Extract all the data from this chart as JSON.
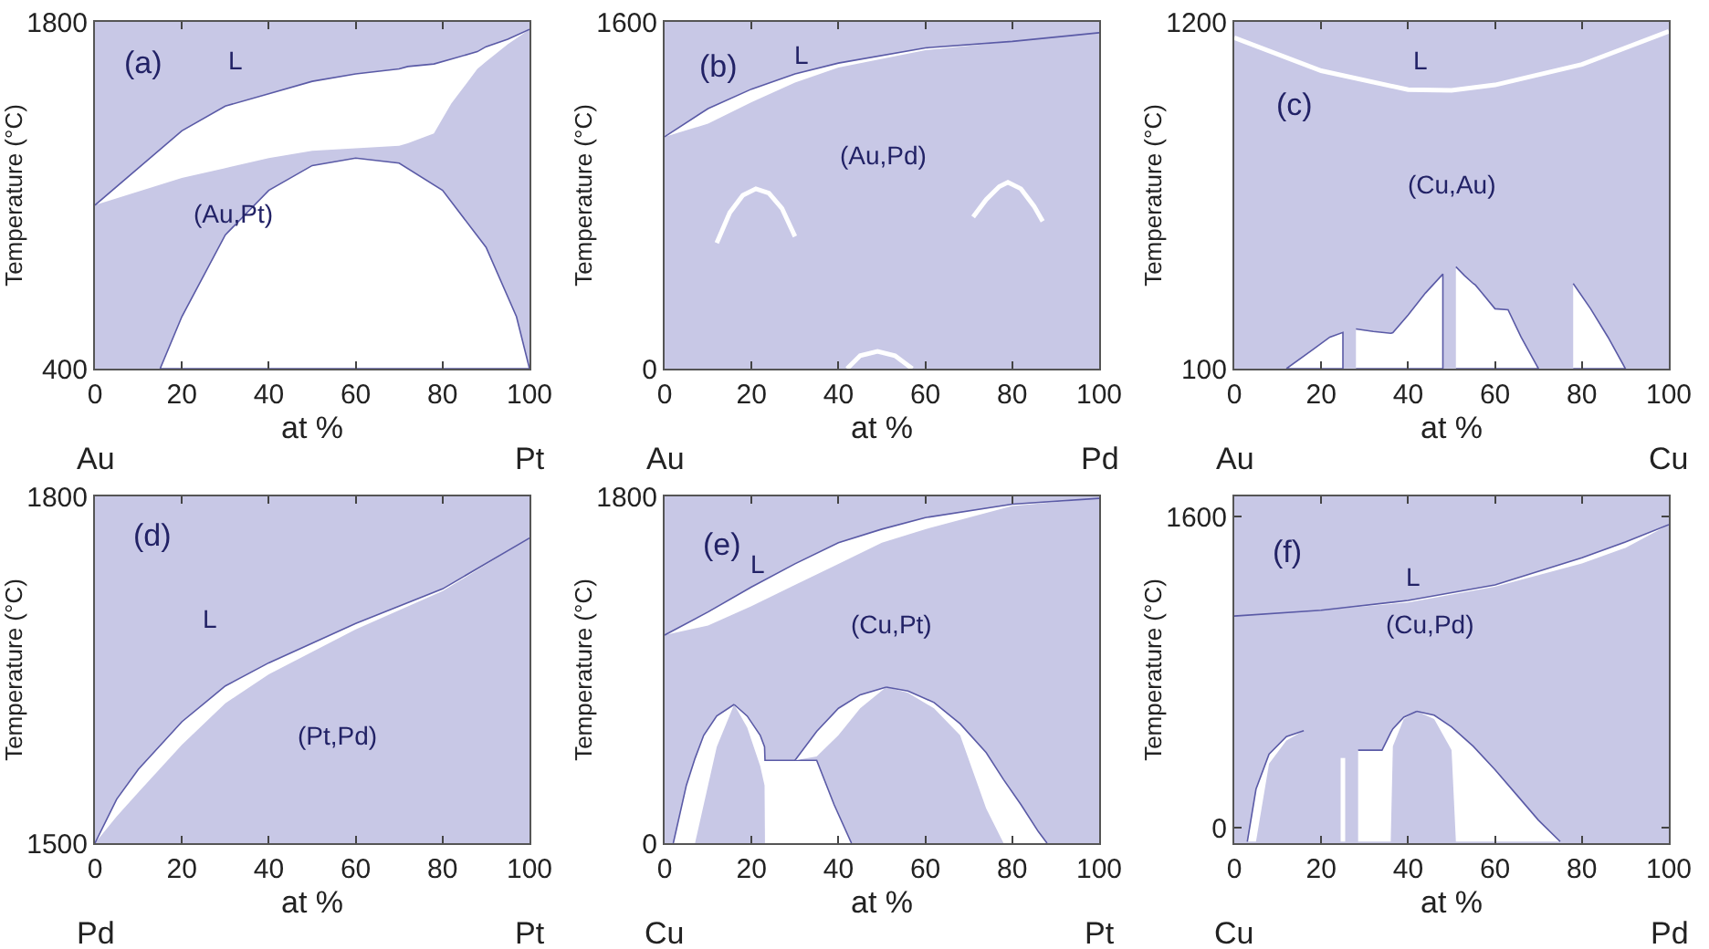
{
  "chart_data": [
    {
      "type": "area",
      "xlabel": "at %",
      "ylabel": "Temperature (°C)",
      "xlim": [
        0,
        100
      ],
      "xticks": [
        0,
        20,
        40,
        60,
        80,
        100
      ],
      "ylim": [
        400,
        1800
      ],
      "yticks": [
        400,
        1800
      ],
      "bands": [
        {
          "axis": "y",
          "from": 400,
          "to": 1800,
          "color": "#c8c8e6"
        }
      ],
      "series": [
        {
          "type": "line",
          "color": "#5a5aa6",
          "x": [
            0,
            20,
            30,
            40,
            50,
            60,
            70,
            72,
            78,
            82,
            88,
            90,
            95,
            100
          ],
          "values": [
            1060,
            1360,
            1460,
            1510,
            1560,
            1590,
            1610,
            1620,
            1630,
            1650,
            1680,
            1700,
            1730,
            1770
          ],
          "upper": [
            1060,
            1360,
            1460,
            1510,
            1560,
            1590,
            1610,
            1620,
            1630,
            1650,
            1680,
            1700,
            1730,
            1770
          ],
          "lower": [
            1060,
            1170,
            1210,
            1250,
            1280,
            1290,
            1300,
            1310,
            1350,
            1470,
            1610,
            1640,
            1710,
            1770
          ]
        },
        {
          "color": "#ffffff",
          "x": [
            15,
            20,
            30,
            40,
            50,
            60,
            70,
            80,
            90,
            97,
            100
          ],
          "values": [
            400,
            610,
            940,
            1120,
            1220,
            1250,
            1230,
            1120,
            890,
            610,
            400
          ]
        }
      ],
      "annotations": [
        "(a)",
        "L",
        "(Au,Pt)",
        "Au",
        "Pt"
      ]
    },
    {
      "type": "line",
      "xlabel": "at %",
      "ylabel": "Temperature (°C)",
      "xlim": [
        0,
        100
      ],
      "xticks": [
        0,
        20,
        40,
        60,
        80,
        100
      ],
      "ylim": [
        0,
        1600
      ],
      "yticks": [
        0,
        1600
      ],
      "bands": [
        {
          "axis": "y",
          "from": 0,
          "to": 1600,
          "color": "#c8c8e6"
        }
      ],
      "series": [
        {
          "type": "line",
          "color": "#5a5aa6",
          "x": [
            0,
            10,
            20,
            30,
            40,
            60,
            80,
            100
          ],
          "values": [
            1070,
            1200,
            1290,
            1360,
            1410,
            1480,
            1510,
            1550
          ],
          "upper": [
            1070,
            1200,
            1290,
            1360,
            1410,
            1480,
            1510,
            1550
          ],
          "lower": [
            1070,
            1130,
            1230,
            1320,
            1390,
            1470,
            1510,
            1550
          ]
        },
        {
          "color": "#ffffff",
          "x": [
            12,
            15,
            18,
            21,
            24,
            27,
            30
          ],
          "values": [
            580,
            720,
            800,
            830,
            810,
            740,
            610
          ]
        },
        {
          "color": "#ffffff",
          "x": [
            71,
            74,
            77,
            79,
            82,
            85,
            87
          ],
          "values": [
            700,
            780,
            840,
            860,
            830,
            750,
            680
          ]
        },
        {
          "color": "#ffffff",
          "x": [
            42,
            45,
            49,
            53,
            57
          ],
          "values": [
            0,
            60,
            80,
            60,
            0
          ]
        }
      ],
      "annotations": [
        "(b)",
        "L",
        "(Au,Pd)",
        "Au",
        "Pd"
      ]
    },
    {
      "type": "area",
      "xlabel": "at %",
      "ylabel": "Temperature (°C)",
      "xlim": [
        0,
        100
      ],
      "xticks": [
        0,
        20,
        40,
        60,
        80,
        100
      ],
      "ylim": [
        100,
        1200
      ],
      "yticks": [
        100,
        1200
      ],
      "bands": [
        {
          "axis": "y",
          "from": 100,
          "to": 1200,
          "color": "#c8c8e6"
        }
      ],
      "series": [
        {
          "type": "line",
          "color": "#ffffff",
          "x": [
            0,
            20,
            40,
            50,
            60,
            80,
            100
          ],
          "values": [
            1150,
            1045,
            985,
            983,
            1000,
            1065,
            1170
          ]
        },
        {
          "color": "#ffffff",
          "x": [
            12,
            18,
            22,
            25
          ],
          "values": [
            100,
            160,
            200,
            215
          ]
        },
        {
          "color": "#ffffff",
          "x": [
            28,
            32,
            36,
            36.5,
            40,
            44,
            48
          ],
          "values": [
            226,
            218,
            212,
            214,
            270,
            340,
            400
          ]
        },
        {
          "color": "#ffffff",
          "x": [
            51,
            53,
            55,
            55.5,
            57,
            60,
            63,
            66,
            70
          ],
          "values": [
            423,
            395,
            370,
            365,
            340,
            290,
            287,
            200,
            100
          ]
        },
        {
          "color": "#ffffff",
          "x": [
            78,
            82,
            86,
            90
          ],
          "values": [
            370,
            290,
            200,
            100
          ]
        }
      ],
      "annotations": [
        "(c)",
        "L",
        "(Cu,Au)",
        "Au",
        "Cu"
      ]
    },
    {
      "type": "line",
      "xlabel": "at %",
      "ylabel": "Temperature (°C)",
      "xlim": [
        0,
        100
      ],
      "xticks": [
        0,
        20,
        40,
        60,
        80,
        100
      ],
      "ylim": [
        1500,
        1800
      ],
      "yticks": [
        1500,
        1800
      ],
      "bands": [
        {
          "axis": "y",
          "from": 1500,
          "to": 1800,
          "color": "#c8c8e6"
        }
      ],
      "series": [
        {
          "color": "#5a5aa6",
          "x": [
            0,
            5,
            10,
            20,
            30,
            40,
            60,
            80,
            100
          ],
          "values": [
            1500,
            1538,
            1564,
            1605,
            1636,
            1656,
            1690,
            1720,
            1764
          ],
          "upper": [
            1500,
            1538,
            1564,
            1605,
            1636,
            1656,
            1690,
            1720,
            1764
          ],
          "lower": [
            1500,
            1523,
            1544,
            1585,
            1621,
            1646,
            1685,
            1718,
            1764
          ]
        }
      ],
      "annotations": [
        "(d)",
        "L",
        "(Pt,Pd)",
        "Pd",
        "Pt"
      ]
    },
    {
      "type": "line",
      "xlabel": "at %",
      "ylabel": "Temperature (°C)",
      "xlim": [
        0,
        100
      ],
      "xticks": [
        0,
        20,
        40,
        60,
        80,
        100
      ],
      "ylim": [
        0,
        1800
      ],
      "yticks": [
        0,
        1800
      ],
      "bands": [
        {
          "axis": "y",
          "from": 0,
          "to": 1800,
          "color": "#c8c8e6"
        }
      ],
      "series": [
        {
          "color": "#5a5aa6",
          "x": [
            0,
            10,
            20,
            30,
            40,
            50,
            60,
            80,
            100
          ],
          "values": [
            1080,
            1200,
            1330,
            1450,
            1560,
            1630,
            1690,
            1760,
            1790
          ],
          "upper": [
            1080,
            1200,
            1330,
            1450,
            1560,
            1630,
            1690,
            1760,
            1790
          ],
          "lower": [
            1080,
            1130,
            1230,
            1340,
            1450,
            1560,
            1630,
            1750,
            1790
          ]
        },
        {
          "color": "#5a5aa6",
          "x": [
            2,
            5,
            7,
            9,
            12,
            16
          ],
          "values": [
            0,
            300,
            440,
            560,
            660,
            720
          ],
          "upper": [
            0,
            300,
            440,
            560,
            660,
            720
          ],
          "lower": [
            0,
            0,
            0,
            200,
            500,
            720
          ]
        },
        {
          "color": "#5a5aa6",
          "x": [
            16,
            19,
            22,
            23,
            23.1,
            29,
            35,
            39,
            43
          ],
          "values": [
            720,
            660,
            560,
            500,
            430,
            430,
            430,
            200,
            0
          ],
          "upper": [
            720,
            660,
            560,
            500,
            430,
            430,
            430,
            200,
            0
          ],
          "lower": [
            720,
            600,
            400,
            300,
            0,
            0,
            0,
            0,
            0
          ]
        },
        {
          "color": "#5a5aa6",
          "x": [
            30,
            35,
            40,
            45,
            51
          ],
          "values": [
            430,
            580,
            700,
            770,
            810
          ],
          "upper": [
            430,
            580,
            700,
            770,
            810
          ],
          "lower": [
            430,
            450,
            560,
            700,
            810
          ]
        },
        {
          "color": "#5a5aa6",
          "x": [
            51,
            56,
            62,
            68,
            74,
            78,
            82,
            86,
            88
          ],
          "values": [
            810,
            790,
            730,
            620,
            470,
            330,
            200,
            60,
            0
          ],
          "upper": [
            810,
            790,
            730,
            620,
            470,
            330,
            200,
            60,
            0
          ],
          "lower": [
            810,
            780,
            700,
            560,
            180,
            0,
            0,
            0,
            0
          ]
        }
      ],
      "annotations": [
        "(e)",
        "L",
        "(Cu,Pt)",
        "Cu",
        "Pt"
      ]
    },
    {
      "type": "line",
      "xlabel": "at %",
      "ylabel": "Temperature (°C)",
      "xlim": [
        0,
        100
      ],
      "xticks": [
        0,
        20,
        40,
        60,
        80,
        100
      ],
      "ylim": [
        -78,
        1705
      ],
      "yticks": [
        0,
        1600
      ],
      "bands": [
        {
          "axis": "y",
          "from": -78,
          "to": 1705,
          "color": "#c8c8e6"
        }
      ],
      "series": [
        {
          "color": "#5a5aa6",
          "x": [
            0,
            20,
            40,
            60,
            80,
            90,
            100
          ],
          "values": [
            1090,
            1120,
            1170,
            1250,
            1390,
            1470,
            1560
          ],
          "upper": [
            1090,
            1120,
            1170,
            1250,
            1390,
            1470,
            1560
          ],
          "lower": [
            1090,
            1120,
            1160,
            1240,
            1360,
            1440,
            1560
          ]
        },
        {
          "color": "#5a5aa6",
          "x": [
            3,
            5,
            8,
            12,
            16
          ],
          "values": [
            -70,
            200,
            380,
            470,
            500
          ],
          "upper": [
            -70,
            200,
            380,
            470,
            500
          ],
          "lower": [
            -70,
            -70,
            330,
            450,
            500
          ]
        },
        {
          "color": "#ffffff",
          "x": [
            25,
            25
          ],
          "values": [
            -70,
            360
          ]
        },
        {
          "color": "#5a5aa6",
          "x": [
            28.5,
            34,
            36,
            36.5,
            39,
            42
          ],
          "values": [
            400,
            400,
            490,
            510,
            570,
            600
          ],
          "upper": [
            400,
            400,
            490,
            510,
            570,
            600
          ],
          "lower": [
            -70,
            -70,
            -70,
            420,
            560,
            600
          ]
        },
        {
          "color": "#5a5aa6",
          "x": [
            42,
            46,
            50,
            51,
            55,
            60,
            65,
            70,
            75
          ],
          "values": [
            600,
            580,
            520,
            500,
            420,
            300,
            170,
            40,
            -70
          ],
          "upper": [
            600,
            580,
            520,
            500,
            420,
            300,
            170,
            40,
            -70
          ],
          "lower": [
            600,
            560,
            400,
            -70,
            -70,
            -70,
            -70,
            -70,
            -70
          ]
        }
      ],
      "annotations": [
        "(f)",
        "L",
        "(Cu,Pd)",
        "Cu",
        "Pd"
      ]
    }
  ]
}
